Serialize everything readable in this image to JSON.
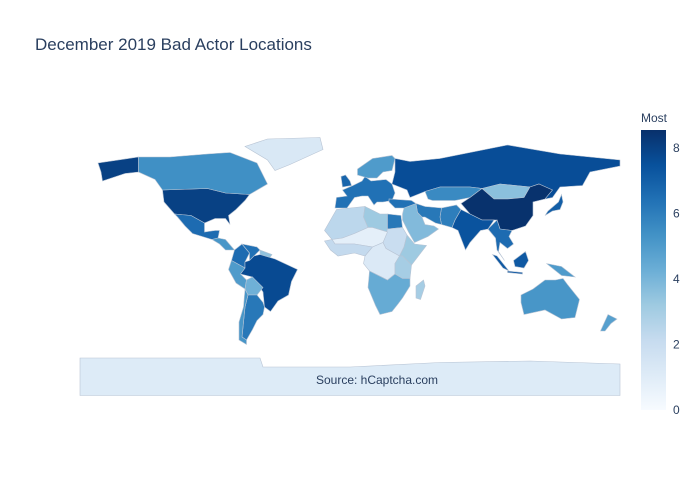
{
  "chart_data": {
    "type": "choropleth",
    "title": "December 2019 Bad Actor Locations",
    "annotation": "Source: hCaptcha.com",
    "colorbar": {
      "title": "Most",
      "ticks": [
        0,
        2,
        4,
        6,
        8
      ],
      "range": [
        0,
        8.55
      ]
    },
    "colorscale": [
      "#f7fbff",
      "#deebf7",
      "#c6dbef",
      "#9ecae1",
      "#6baed6",
      "#4292c6",
      "#2171b5",
      "#08519c",
      "#08306b"
    ],
    "projection": "equirectangular",
    "regions": [
      {
        "name": "United States",
        "value": 8.0
      },
      {
        "name": "Alaska",
        "value": 8.0
      },
      {
        "name": "Canada",
        "value": 5.4
      },
      {
        "name": "Greenland",
        "value": 1.3
      },
      {
        "name": "Mexico",
        "value": 6.6
      },
      {
        "name": "Central America",
        "value": 5.2
      },
      {
        "name": "Colombia",
        "value": 6.6
      },
      {
        "name": "Venezuela",
        "value": 6.4
      },
      {
        "name": "Guianas",
        "value": 3.5
      },
      {
        "name": "Brazil",
        "value": 7.7
      },
      {
        "name": "Peru",
        "value": 5.0
      },
      {
        "name": "Bolivia",
        "value": 4.2
      },
      {
        "name": "Argentina",
        "value": 6.2
      },
      {
        "name": "Chile",
        "value": 5.2
      },
      {
        "name": "Western Europe",
        "value": 6.4
      },
      {
        "name": "Scandinavia",
        "value": 5.0
      },
      {
        "name": "United Kingdom",
        "value": 6.8
      },
      {
        "name": "Russia",
        "value": 7.6
      },
      {
        "name": "Kazakhstan",
        "value": 5.6
      },
      {
        "name": "Mongolia",
        "value": 3.6
      },
      {
        "name": "China",
        "value": 8.5
      },
      {
        "name": "India",
        "value": 7.4
      },
      {
        "name": "Pakistan",
        "value": 6.0
      },
      {
        "name": "Iran",
        "value": 6.2
      },
      {
        "name": "Middle East",
        "value": 3.8
      },
      {
        "name": "Turkey",
        "value": 6.4
      },
      {
        "name": "Southeast Asia",
        "value": 6.6
      },
      {
        "name": "Japan",
        "value": 7.0
      },
      {
        "name": "Sumatra",
        "value": 7.2
      },
      {
        "name": "Borneo",
        "value": 7.2
      },
      {
        "name": "Java",
        "value": 7.2
      },
      {
        "name": "New Guinea",
        "value": 5.0
      },
      {
        "name": "Australia",
        "value": 5.2
      },
      {
        "name": "New Zealand",
        "value": 4.8
      },
      {
        "name": "Northwest Africa",
        "value": 2.4
      },
      {
        "name": "Libya",
        "value": 3.2
      },
      {
        "name": "Egypt",
        "value": 6.2
      },
      {
        "name": "Sudan",
        "value": 2.0
      },
      {
        "name": "Horn of Africa",
        "value": 3.2
      },
      {
        "name": "Sahel",
        "value": 0.8
      },
      {
        "name": "West Africa",
        "value": 2.2
      },
      {
        "name": "Central Africa",
        "value": 1.2
      },
      {
        "name": "East Africa",
        "value": 3.0
      },
      {
        "name": "Southern Africa",
        "value": 4.4
      },
      {
        "name": "Madagascar",
        "value": 3.0
      },
      {
        "name": "Antarctica",
        "value": 1.1
      }
    ]
  }
}
